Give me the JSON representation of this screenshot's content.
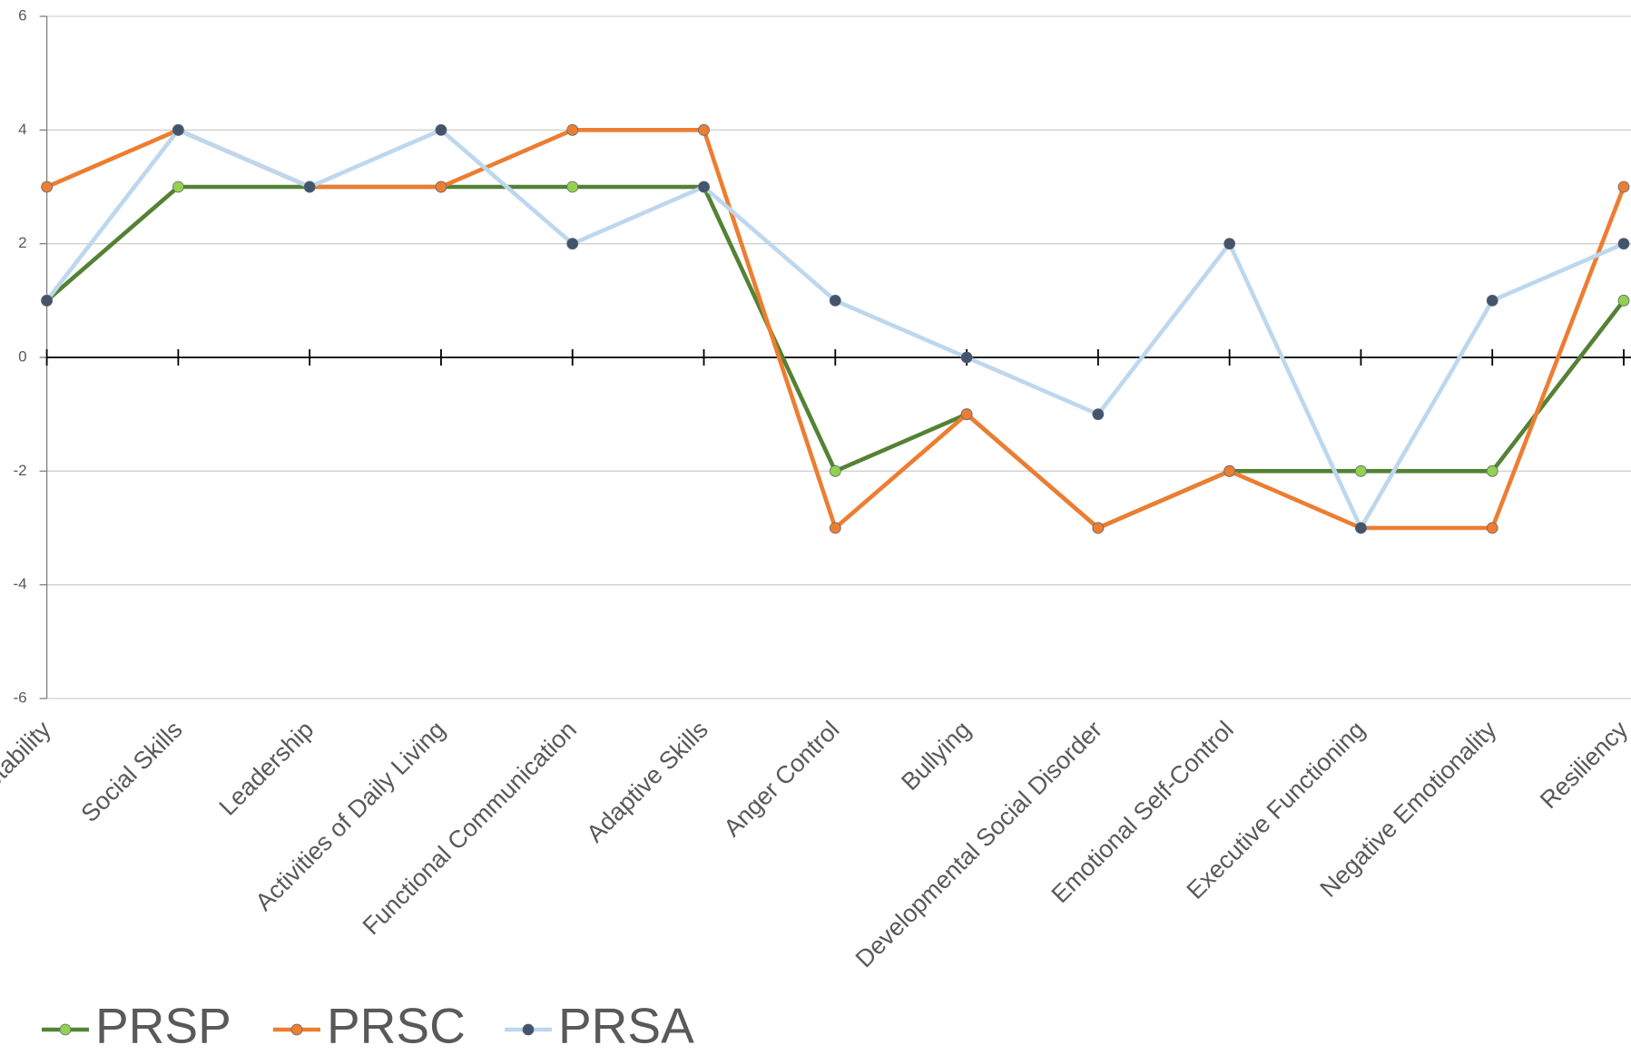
{
  "chart_data": {
    "type": "line",
    "categories": [
      "Adaptability",
      "Social Skills",
      "Leadership",
      "Activities of Daily Living",
      "Functional Communication",
      "Adaptive Skills",
      "Anger Control",
      "Bullying",
      "Developmental Social Disorder",
      "Emotional Self-Control",
      "Executive Functioning",
      "Negative Emotionality",
      "Resiliency"
    ],
    "series": [
      {
        "name": "PRSP",
        "color": "#548235",
        "marker_color": "#92d050",
        "values": [
          1,
          3,
          3,
          3,
          3,
          3,
          -2,
          -1,
          -3,
          -2,
          -2,
          -2,
          1
        ]
      },
      {
        "name": "PRSC",
        "color": "#ed7d31",
        "marker_color": "#ed7d31",
        "values": [
          3,
          4,
          3,
          3,
          4,
          4,
          -3,
          -1,
          -3,
          -2,
          -3,
          -3,
          3
        ]
      },
      {
        "name": "PRSA",
        "color": "#bdd7ee",
        "marker_color": "#44546a",
        "values": [
          1,
          4,
          3,
          4,
          2,
          3,
          1,
          0,
          -1,
          2,
          -3,
          1,
          2
        ]
      }
    ],
    "ylim": [
      -6,
      6
    ],
    "yticks": [
      -6,
      -4,
      -2,
      0,
      2,
      4,
      6
    ],
    "grid": true,
    "legend": "bottom"
  }
}
